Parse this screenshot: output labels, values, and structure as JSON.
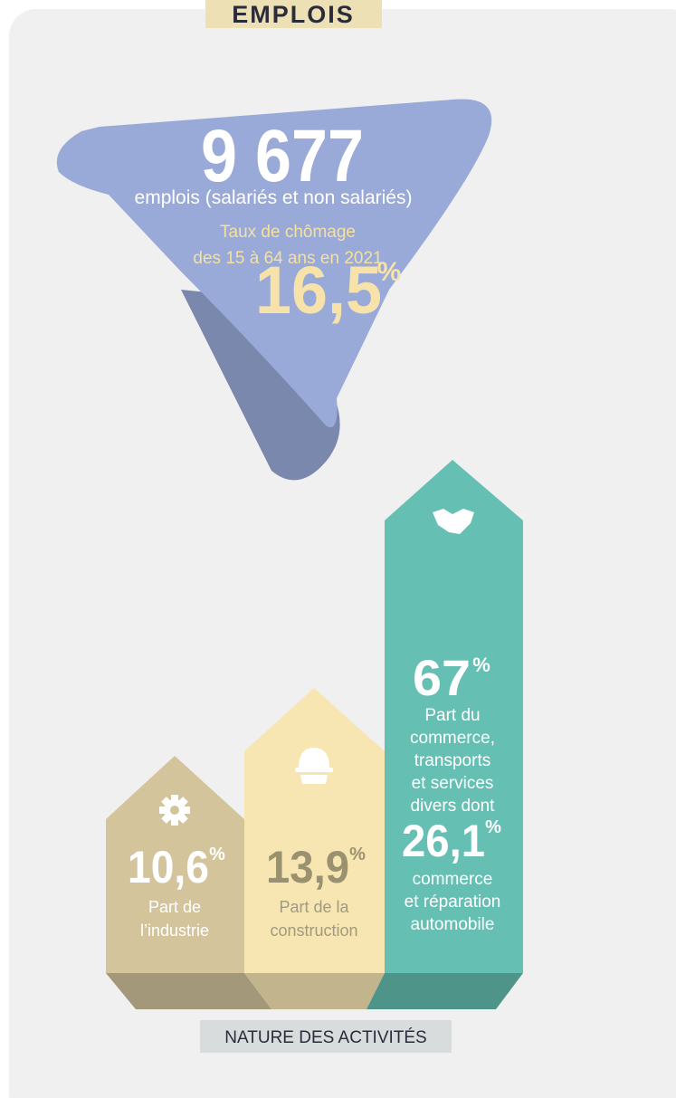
{
  "header": {
    "title": "EMPLOIS"
  },
  "headline": {
    "value": "9 677",
    "label": "emplois (salariés et non salariés)",
    "unemployment": {
      "label_lines": [
        "Taux de chômage",
        "des 15 à 64 ans en 2021"
      ],
      "value": "16,5",
      "unit": "%"
    }
  },
  "activities": [
    {
      "value": "10,6",
      "unit": "%",
      "label_lines": [
        "Part de",
        "l’industrie"
      ]
    },
    {
      "value": "13,9",
      "unit": "%",
      "label_lines": [
        "Part de la",
        "construction"
      ]
    },
    {
      "value": "67",
      "unit": "%",
      "label_lines": [
        "Part du",
        "commerce,",
        "transports",
        "et services",
        "divers dont"
      ],
      "sub": {
        "value": "26,1",
        "unit": "%",
        "label_lines": [
          "commerce",
          "et réparation",
          "automobile"
        ]
      }
    }
  ],
  "footer": {
    "label": "NATURE DES ACTIVITÉS"
  }
}
